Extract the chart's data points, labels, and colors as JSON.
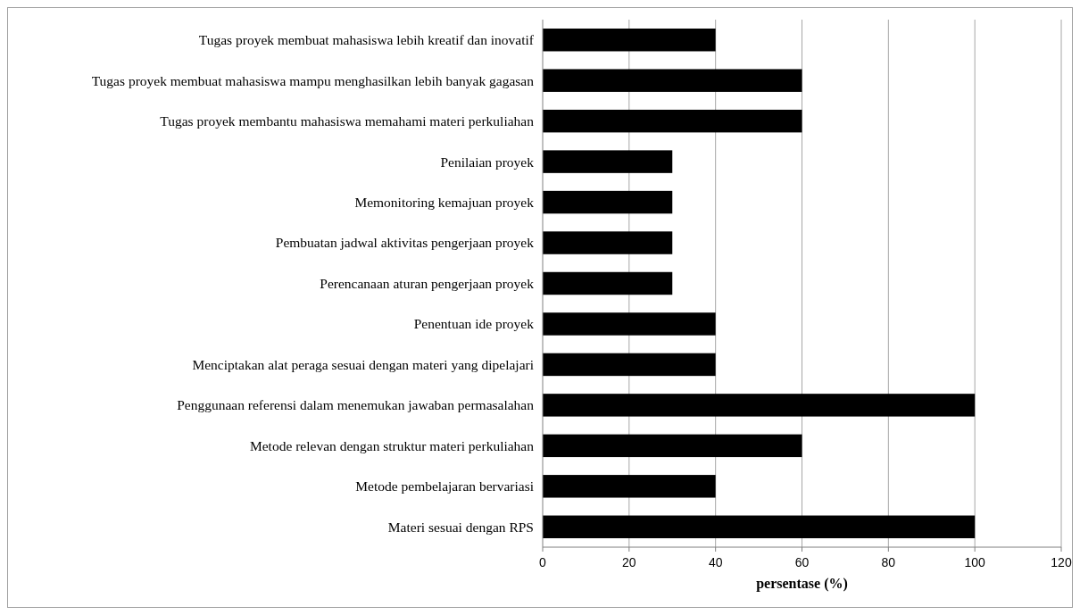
{
  "chart_data": {
    "type": "bar",
    "orientation": "horizontal",
    "xlabel": "persentase (%)",
    "categories": [
      "Tugas proyek membuat mahasiswa lebih kreatif dan inovatif",
      "Tugas proyek membuat mahasiswa mampu menghasilkan lebih banyak gagasan",
      "Tugas proyek membantu mahasiswa memahami materi perkuliahan",
      "Penilaian proyek",
      "Memonitoring kemajuan proyek",
      "Pembuatan jadwal aktivitas pengerjaan proyek",
      "Perencanaan aturan pengerjaan proyek",
      "Penentuan ide proyek",
      "Menciptakan alat peraga sesuai dengan materi yang dipelajari",
      "Penggunaan referensi dalam menemukan jawaban permasalahan",
      "Metode relevan dengan struktur materi perkuliahan",
      "Metode pembelajaran bervariasi",
      "Materi sesuai dengan RPS"
    ],
    "values": [
      40,
      60,
      60,
      30,
      30,
      30,
      30,
      40,
      40,
      100,
      60,
      40,
      100
    ],
    "color": "#000000",
    "xlim": [
      0,
      120
    ],
    "xticks": [
      0,
      20,
      40,
      60,
      80,
      100,
      120
    ],
    "grid": "x"
  }
}
